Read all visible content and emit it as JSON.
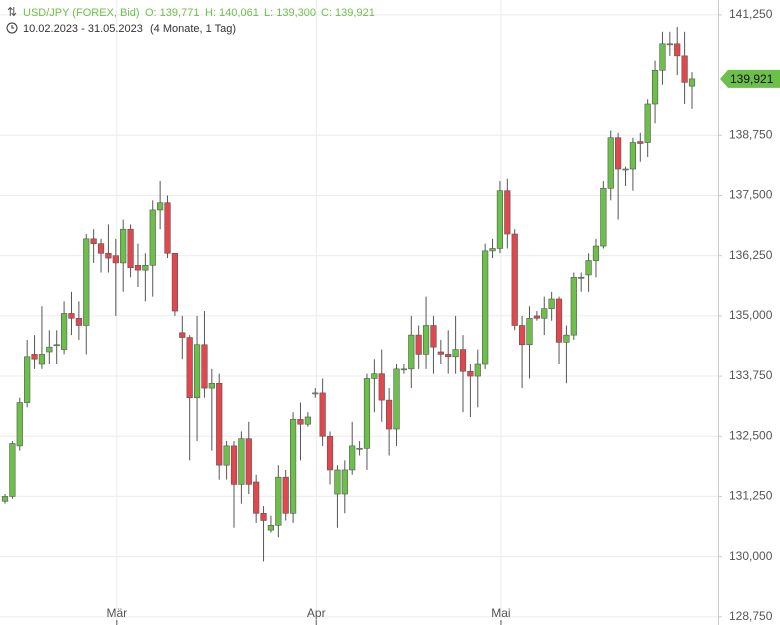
{
  "chart_data": {
    "type": "candlestick",
    "title": "USD/JPY (FOREX, Bid)",
    "ohlc_info": [
      "O: 139,771",
      "H: 140,061",
      "L: 139,300",
      "C: 139,921"
    ],
    "date_range": "10.02.2023 - 31.05.2023",
    "period": "(4 Monate, 1 Tag)",
    "categories": [
      null,
      null,
      null,
      null,
      null,
      null,
      null,
      null,
      null,
      null,
      null,
      null,
      null,
      null,
      null,
      "Mär",
      null,
      null,
      null,
      null,
      null,
      null,
      null,
      null,
      null,
      null,
      null,
      null,
      null,
      null,
      null,
      null,
      null,
      null,
      null,
      null,
      null,
      null,
      null,
      null,
      null,
      null,
      "Apr",
      null,
      null,
      null,
      null,
      null,
      null,
      null,
      null,
      null,
      null,
      null,
      null,
      null,
      null,
      null,
      null,
      null,
      null,
      null,
      null,
      null,
      null,
      null,
      null,
      "Mai",
      null,
      null,
      null,
      null,
      null,
      null,
      null,
      null,
      null,
      null,
      null,
      null,
      null,
      null,
      null,
      null,
      null,
      null,
      null,
      null,
      null,
      null,
      null,
      null,
      null,
      null
    ],
    "open": [
      131.15,
      131.25,
      132.3,
      133.2,
      134.2,
      134.0,
      134.25,
      134.4,
      134.3,
      135.05,
      134.95,
      134.8,
      136.6,
      136.5,
      136.3,
      136.25,
      136.1,
      136.8,
      136.05,
      135.95,
      136.05,
      137.2,
      137.35,
      136.3,
      134.65,
      134.55,
      133.3,
      134.4,
      133.5,
      133.6,
      131.9,
      132.3,
      131.5,
      132.45,
      131.55,
      130.9,
      130.55,
      130.65,
      131.65,
      130.9,
      132.85,
      132.75,
      133.4,
      133.4,
      132.5,
      131.3,
      131.3,
      131.8,
      132.25,
      132.25,
      133.7,
      133.8,
      133.25,
      132.65,
      133.9,
      133.9,
      134.6,
      134.2,
      134.8,
      134.25,
      134.2,
      134.15,
      134.3,
      133.85,
      133.75,
      134.0,
      136.35,
      136.4,
      137.6,
      136.7,
      134.8,
      134.4,
      135.0,
      134.95,
      135.15,
      135.35,
      134.45,
      134.6,
      135.8,
      135.85,
      136.15,
      136.45,
      137.65,
      138.7,
      138.05,
      138.05,
      138.62,
      138.6,
      139.4,
      140.1,
      140.65,
      140.65,
      140.4,
      139.771
    ],
    "high": [
      131.3,
      132.4,
      133.3,
      134.5,
      134.6,
      135.2,
      134.7,
      134.7,
      135.3,
      135.5,
      135.3,
      136.7,
      136.8,
      136.6,
      136.9,
      136.6,
      137.0,
      136.9,
      136.5,
      136.3,
      137.4,
      137.8,
      137.5,
      136.3,
      135.0,
      134.6,
      135.0,
      135.1,
      133.9,
      133.8,
      132.4,
      132.4,
      132.6,
      132.8,
      131.7,
      131.05,
      130.85,
      131.9,
      131.8,
      133.0,
      133.2,
      133.0,
      133.5,
      133.7,
      132.6,
      131.9,
      132.0,
      132.8,
      132.4,
      133.8,
      134.1,
      134.3,
      133.5,
      134.0,
      134.0,
      135.0,
      134.8,
      135.4,
      135.0,
      134.5,
      134.7,
      135.0,
      134.6,
      134.0,
      134.3,
      136.5,
      136.6,
      137.8,
      137.85,
      136.8,
      135.0,
      135.2,
      135.1,
      135.4,
      135.5,
      135.4,
      134.8,
      135.9,
      135.9,
      136.3,
      136.6,
      137.8,
      138.85,
      138.8,
      138.1,
      138.7,
      138.8,
      139.5,
      140.3,
      140.9,
      140.9,
      141.0,
      140.9,
      140.061
    ],
    "low": [
      131.1,
      131.2,
      132.2,
      133.1,
      133.9,
      133.9,
      134.0,
      134.0,
      134.2,
      134.6,
      134.5,
      134.2,
      136.1,
      135.9,
      135.9,
      135.0,
      135.5,
      135.8,
      135.6,
      135.3,
      135.4,
      136.8,
      136.2,
      135.0,
      134.1,
      132.0,
      132.4,
      133.3,
      132.2,
      131.6,
      131.6,
      130.6,
      131.1,
      131.3,
      130.7,
      129.9,
      130.5,
      130.4,
      130.75,
      130.7,
      132.0,
      132.7,
      133.3,
      132.3,
      131.5,
      130.6,
      130.9,
      131.7,
      132.1,
      131.8,
      133.0,
      132.8,
      132.1,
      132.3,
      133.8,
      133.5,
      133.9,
      133.9,
      133.8,
      134.0,
      133.8,
      133.8,
      133.0,
      132.9,
      133.1,
      133.9,
      136.2,
      136.3,
      136.4,
      134.7,
      133.5,
      133.7,
      134.9,
      134.6,
      134.9,
      134.0,
      133.6,
      134.5,
      135.5,
      135.5,
      135.8,
      136.4,
      137.4,
      137.0,
      137.7,
      137.6,
      138.2,
      138.3,
      139.0,
      139.8,
      140.4,
      140.0,
      139.4,
      139.3
    ],
    "close": [
      131.25,
      132.35,
      133.2,
      134.15,
      134.1,
      134.2,
      134.35,
      134.4,
      135.05,
      134.95,
      134.8,
      136.6,
      136.5,
      136.3,
      136.2,
      136.1,
      136.8,
      136.0,
      135.95,
      136.05,
      137.2,
      137.35,
      136.3,
      135.1,
      134.55,
      133.3,
      134.4,
      133.5,
      133.6,
      131.9,
      132.3,
      131.5,
      132.45,
      131.5,
      130.9,
      130.75,
      130.65,
      131.65,
      130.9,
      132.85,
      132.75,
      132.9,
      133.4,
      132.5,
      131.8,
      131.8,
      131.8,
      132.3,
      132.25,
      133.7,
      133.8,
      133.25,
      132.65,
      133.9,
      133.9,
      134.6,
      134.2,
      134.8,
      134.35,
      134.2,
      134.15,
      134.3,
      133.85,
      133.75,
      134.0,
      136.35,
      136.4,
      137.6,
      136.7,
      134.8,
      134.4,
      134.95,
      134.95,
      135.15,
      135.35,
      134.45,
      134.6,
      135.8,
      135.8,
      136.15,
      136.45,
      137.65,
      138.7,
      138.05,
      138.05,
      138.6,
      138.58,
      139.4,
      140.1,
      140.65,
      140.65,
      140.4,
      139.85,
      139.921
    ],
    "up_color": "#6cc04a",
    "down_color": "#e2474d",
    "last_price": {
      "value": 139.921,
      "label": "139,921"
    },
    "ylim": [
      128.58,
      141.56
    ],
    "yticks": [
      {
        "value": 141.25,
        "label": "141,250"
      },
      {
        "value": 138.75,
        "label": "138,750"
      },
      {
        "value": 137.5,
        "label": "137,500"
      },
      {
        "value": 136.25,
        "label": "136,250"
      },
      {
        "value": 135,
        "label": "135,000"
      },
      {
        "value": 133.75,
        "label": "133,750"
      },
      {
        "value": 132.5,
        "label": "132,500"
      },
      {
        "value": 131.25,
        "label": "131,250"
      },
      {
        "value": 130,
        "label": "130,000"
      },
      {
        "value": 128.75,
        "label": "128,750"
      }
    ],
    "grid": true
  }
}
